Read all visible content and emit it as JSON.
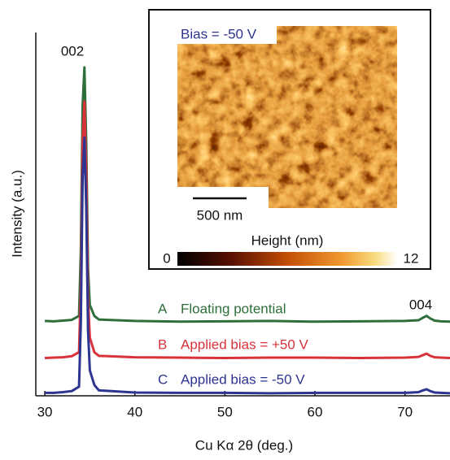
{
  "chart_data": {
    "type": "line",
    "xlabel": "Cu Kα 2θ (deg.)",
    "ylabel": "Intensity (a.u.)",
    "xlim": [
      29,
      75
    ],
    "xticks": [
      30,
      40,
      50,
      60,
      70
    ],
    "ylim": [
      0,
      100
    ],
    "x": [
      30,
      31,
      32,
      33,
      33.8,
      34.0,
      34.2,
      34.4,
      34.6,
      34.8,
      35.0,
      35.5,
      36,
      40,
      45,
      50,
      55,
      60,
      65,
      70,
      71.5,
      72.0,
      72.4,
      72.8,
      73.3,
      74,
      75
    ],
    "series": [
      {
        "letter": "A",
        "name": "Floating potential",
        "color": "#2e6e3a",
        "values": [
          20.6,
          20.5,
          20.7,
          20.9,
          22,
          40,
          80,
          90.4,
          70,
          35,
          25,
          22,
          21,
          20.6,
          20.4,
          20.5,
          20.6,
          20.4,
          20.5,
          20.6,
          20.8,
          21.5,
          22,
          21.3,
          20.7,
          20.5,
          20.4
        ]
      },
      {
        "letter": "B",
        "name": "Applied bias = +50 V",
        "color": "#d8323a",
        "values": [
          10.4,
          10.5,
          10.6,
          10.9,
          12,
          30,
          70,
          81,
          62,
          27,
          16,
          12,
          11,
          10.6,
          10.5,
          10.4,
          10.5,
          10.5,
          10.4,
          10.5,
          10.7,
          11.2,
          11.6,
          11,
          10.6,
          10.5,
          10.4
        ]
      },
      {
        "letter": "C",
        "name": "Applied bias = -50 V",
        "color": "#2e3590",
        "values": [
          0.8,
          0.8,
          1,
          1.3,
          2.5,
          20,
          60,
          71,
          52,
          18,
          7,
          3,
          1.5,
          0.9,
          0.8,
          0.8,
          0.7,
          0.8,
          0.8,
          0.8,
          1,
          1.5,
          1.8,
          1.3,
          0.9,
          0.8,
          0.7
        ]
      }
    ],
    "annotations": [
      {
        "text": "002"
      },
      {
        "text": "004"
      }
    ],
    "inset": {
      "label": "Bias = -50 V",
      "scale_bar": "500 nm",
      "colorbar": {
        "label": "Height (nm)",
        "ticks": [
          0,
          12
        ]
      }
    }
  }
}
